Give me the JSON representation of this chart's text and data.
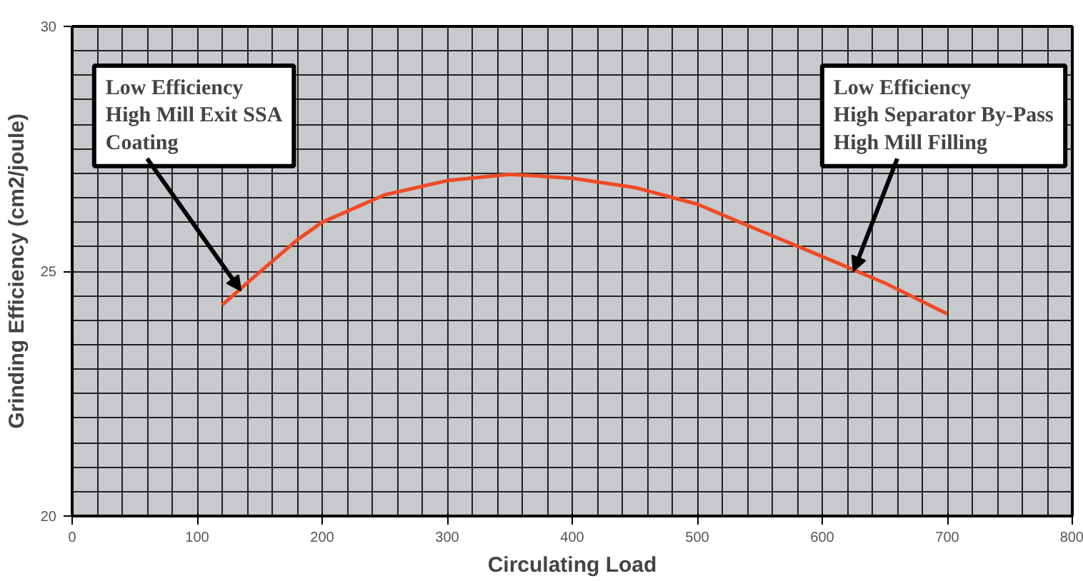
{
  "chart_data": {
    "type": "line",
    "xlabel": "Circulating Load",
    "ylabel": "Grinding Efficiency (cm2/joule)",
    "x": [
      120,
      140,
      180,
      200,
      250,
      300,
      350,
      400,
      450,
      500,
      550,
      600,
      650,
      700
    ],
    "series": [
      {
        "color": "#f04a24",
        "values": [
          24.31,
          24.76,
          25.64,
          26.0,
          26.56,
          26.85,
          26.98,
          26.9,
          26.71,
          26.37,
          25.83,
          25.3,
          24.76,
          24.13
        ]
      }
    ],
    "xlim": [
      0,
      800
    ],
    "xticks": [
      0,
      100,
      200,
      300,
      400,
      500,
      600,
      700,
      800
    ],
    "ylim": [
      20,
      30
    ],
    "yticks": [
      20,
      25,
      30
    ],
    "grid": true,
    "marker": "none",
    "line_style": "solid",
    "annotations": [
      {
        "text": "Low Efficiency\nHigh Mill Exit SSA\nCoating",
        "x": 135,
        "y": 24.6
      },
      {
        "text": "Low Efficiency\nHigh Separator By-Pass\nHigh Mill Filling",
        "x": 625,
        "y": 25.0
      }
    ]
  }
}
